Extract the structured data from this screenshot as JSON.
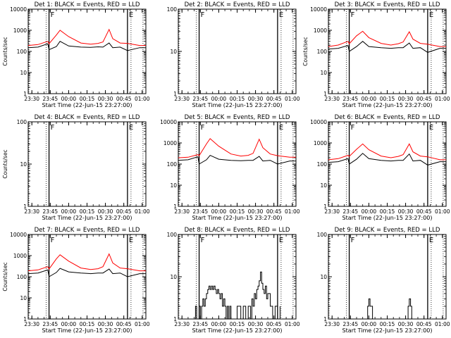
{
  "colors": {
    "events": "#000000",
    "lld": "#ff0000",
    "background": "#ffffff"
  },
  "chart_data": [
    {
      "type": "line",
      "title": "Det 1: BLACK = Events, RED = LLD",
      "xlabel": "Start Time (22-Jun-15 23:27:00)",
      "ylabel": "Counts/sec",
      "yscale": "log",
      "ylim": [
        1,
        10000
      ],
      "yticks": [
        "1",
        "10",
        "100",
        "1000",
        "10000"
      ],
      "xticks": [
        "23:30",
        "23:45",
        "00:00",
        "00:15",
        "00:30",
        "00:45",
        "01:00"
      ],
      "markers": [
        {
          "label": "F",
          "pos": "23:44"
        },
        {
          "label": "E",
          "pos": "00:48"
        }
      ],
      "series": [
        {
          "name": "Events",
          "color": "#000000",
          "x": [
            "23:27",
            "23:35",
            "23:43",
            "23:44",
            "23:50",
            "23:53",
            "00:00",
            "00:10",
            "00:18",
            "00:24",
            "00:28",
            "00:33",
            "00:36",
            "00:42",
            "00:48",
            "00:58",
            "01:03"
          ],
          "y": [
            150,
            160,
            230,
            120,
            170,
            300,
            180,
            160,
            155,
            165,
            160,
            250,
            150,
            160,
            110,
            150,
            150
          ]
        },
        {
          "name": "LLD",
          "color": "#ff0000",
          "x": [
            "23:27",
            "23:35",
            "23:43",
            "23:44",
            "23:50",
            "23:53",
            "00:00",
            "00:10",
            "00:18",
            "00:24",
            "00:28",
            "00:33",
            "00:36",
            "00:42",
            "00:48",
            "00:58",
            "01:03"
          ],
          "y": [
            190,
            210,
            300,
            230,
            600,
            1000,
            500,
            250,
            220,
            240,
            280,
            1100,
            400,
            250,
            240,
            190,
            190
          ]
        }
      ]
    },
    {
      "type": "line",
      "title": "Det 2: BLACK = Events, RED = LLD",
      "xlabel": "Start Time (22-Jun-15 23:27:00)",
      "ylabel": "",
      "yscale": "log",
      "ylim": [
        1,
        100
      ],
      "yticks": [
        "1",
        "10",
        "100"
      ],
      "xticks": [
        "23:30",
        "23:45",
        "00:00",
        "00:15",
        "00:30",
        "00:45",
        "01:00"
      ],
      "markers": [
        {
          "label": "F",
          "pos": "23:44"
        },
        {
          "label": "E",
          "pos": "00:48"
        }
      ],
      "series": []
    },
    {
      "type": "line",
      "title": "Det 3: BLACK = Events, RED = LLD",
      "xlabel": "Start Time (22-Jun-15 23:27:00)",
      "ylabel": "Counts/sec",
      "yscale": "log",
      "ylim": [
        1,
        10000
      ],
      "yticks": [
        "1",
        "10",
        "100",
        "1000",
        "10000"
      ],
      "xticks": [
        "23:30",
        "23:45",
        "00:00",
        "00:15",
        "00:30",
        "00:45",
        "01:00"
      ],
      "markers": [
        {
          "label": "F",
          "pos": "23:44"
        },
        {
          "label": "E",
          "pos": "00:48"
        }
      ],
      "series": [
        {
          "name": "Events",
          "color": "#000000",
          "x": [
            "23:27",
            "23:35",
            "23:43",
            "23:44",
            "23:50",
            "23:55",
            "00:00",
            "00:10",
            "00:18",
            "00:24",
            "00:28",
            "00:33",
            "00:36",
            "00:42",
            "00:48",
            "00:58",
            "01:03"
          ],
          "y": [
            130,
            140,
            190,
            100,
            170,
            300,
            170,
            150,
            140,
            150,
            150,
            250,
            140,
            150,
            90,
            140,
            140
          ]
        },
        {
          "name": "LLD",
          "color": "#ff0000",
          "x": [
            "23:27",
            "23:35",
            "23:43",
            "23:44",
            "23:50",
            "23:55",
            "00:00",
            "00:10",
            "00:18",
            "00:24",
            "00:28",
            "00:33",
            "00:36",
            "00:42",
            "00:48",
            "00:58",
            "01:03"
          ],
          "y": [
            170,
            200,
            300,
            230,
            550,
            900,
            450,
            240,
            200,
            230,
            280,
            850,
            380,
            240,
            220,
            170,
            170
          ]
        }
      ]
    },
    {
      "type": "line",
      "title": "Det 4: BLACK = Events, RED = LLD",
      "xlabel": "Start Time (22-Jun-15 23:27:00)",
      "ylabel": "Counts/sec",
      "yscale": "log",
      "ylim": [
        1,
        100
      ],
      "yticks": [
        "1",
        "10",
        "100"
      ],
      "xticks": [
        "23:30",
        "23:45",
        "00:00",
        "00:15",
        "00:30",
        "00:45",
        "01:00"
      ],
      "markers": [
        {
          "label": "F",
          "pos": "23:44"
        },
        {
          "label": "E",
          "pos": "00:48"
        }
      ],
      "series": []
    },
    {
      "type": "line",
      "title": "Det 5: BLACK = Events, RED = LLD",
      "xlabel": "Start Time (22-Jun-15 23:27:00)",
      "ylabel": "",
      "yscale": "log",
      "ylim": [
        1,
        10000
      ],
      "yticks": [
        "1",
        "10",
        "100",
        "1000",
        "10000"
      ],
      "xticks": [
        "23:30",
        "23:45",
        "00:00",
        "00:15",
        "00:30",
        "00:45",
        "01:00"
      ],
      "markers": [
        {
          "label": "F",
          "pos": "23:44"
        },
        {
          "label": "E",
          "pos": "00:48"
        }
      ],
      "series": [
        {
          "name": "Events",
          "color": "#000000",
          "x": [
            "23:27",
            "23:35",
            "23:43",
            "23:44",
            "23:50",
            "23:53",
            "00:00",
            "00:10",
            "00:18",
            "00:24",
            "00:28",
            "00:33",
            "00:36",
            "00:42",
            "00:48",
            "00:58",
            "01:03"
          ],
          "y": [
            150,
            160,
            220,
            100,
            160,
            260,
            170,
            150,
            145,
            150,
            150,
            230,
            140,
            150,
            100,
            140,
            140
          ]
        },
        {
          "name": "LLD",
          "color": "#ff0000",
          "x": [
            "23:27",
            "23:35",
            "23:43",
            "23:44",
            "23:50",
            "23:53",
            "00:00",
            "00:10",
            "00:18",
            "00:24",
            "00:28",
            "00:33",
            "00:36",
            "00:42",
            "00:48",
            "00:58",
            "01:03"
          ],
          "y": [
            200,
            210,
            280,
            250,
            900,
            1600,
            700,
            300,
            240,
            260,
            320,
            1500,
            600,
            300,
            250,
            210,
            210
          ]
        }
      ]
    },
    {
      "type": "line",
      "title": "Det 6: BLACK = Events, RED = LLD",
      "xlabel": "Start Time (22-Jun-15 23:27:00)",
      "ylabel": "",
      "yscale": "log",
      "ylim": [
        1,
        10000
      ],
      "yticks": [
        "1",
        "10",
        "100",
        "1000",
        "10000"
      ],
      "xticks": [
        "23:30",
        "23:45",
        "00:00",
        "00:15",
        "00:30",
        "00:45",
        "01:00"
      ],
      "markers": [
        {
          "label": "F",
          "pos": "23:44"
        },
        {
          "label": "E",
          "pos": "00:48"
        }
      ],
      "series": [
        {
          "name": "Events",
          "color": "#000000",
          "x": [
            "23:27",
            "23:35",
            "23:43",
            "23:44",
            "23:50",
            "23:55",
            "00:00",
            "00:10",
            "00:18",
            "00:24",
            "00:28",
            "00:33",
            "00:36",
            "00:42",
            "00:48",
            "00:58",
            "01:03"
          ],
          "y": [
            120,
            130,
            180,
            100,
            170,
            320,
            180,
            150,
            140,
            150,
            150,
            300,
            140,
            150,
            90,
            130,
            130
          ]
        },
        {
          "name": "LLD",
          "color": "#ff0000",
          "x": [
            "23:27",
            "23:35",
            "23:43",
            "23:44",
            "23:50",
            "23:55",
            "00:00",
            "00:10",
            "00:18",
            "00:24",
            "00:28",
            "00:33",
            "00:36",
            "00:42",
            "00:48",
            "00:58",
            "01:03"
          ],
          "y": [
            160,
            180,
            260,
            230,
            500,
            900,
            480,
            240,
            200,
            230,
            280,
            900,
            380,
            240,
            220,
            160,
            160
          ]
        }
      ]
    },
    {
      "type": "line",
      "title": "Det 7: BLACK = Events, RED = LLD",
      "xlabel": "Start Time (22-Jun-15 23:27:00)",
      "ylabel": "Counts/sec",
      "yscale": "log",
      "ylim": [
        1,
        10000
      ],
      "yticks": [
        "1",
        "10",
        "100",
        "1000",
        "10000"
      ],
      "xticks": [
        "23:30",
        "23:45",
        "00:00",
        "00:15",
        "00:30",
        "00:45",
        "01:00"
      ],
      "markers": [
        {
          "label": "F",
          "pos": "23:44"
        },
        {
          "label": "E",
          "pos": "00:48"
        }
      ],
      "series": [
        {
          "name": "Events",
          "color": "#000000",
          "x": [
            "23:27",
            "23:35",
            "23:43",
            "23:44",
            "23:50",
            "23:53",
            "00:00",
            "00:10",
            "00:18",
            "00:24",
            "00:28",
            "00:33",
            "00:36",
            "00:42",
            "00:48",
            "00:58",
            "01:03"
          ],
          "y": [
            140,
            150,
            210,
            100,
            160,
            250,
            170,
            150,
            140,
            150,
            150,
            230,
            140,
            150,
            100,
            140,
            140
          ]
        },
        {
          "name": "LLD",
          "color": "#ff0000",
          "x": [
            "23:27",
            "23:35",
            "23:43",
            "23:44",
            "23:50",
            "23:53",
            "00:00",
            "00:10",
            "00:18",
            "00:24",
            "00:28",
            "00:33",
            "00:36",
            "00:42",
            "00:48",
            "00:58",
            "01:03"
          ],
          "y": [
            190,
            210,
            300,
            230,
            700,
            1100,
            550,
            260,
            220,
            240,
            300,
            1200,
            450,
            260,
            240,
            190,
            190
          ]
        }
      ]
    },
    {
      "type": "line",
      "title": "Det 8: BLACK = Events, RED = LLD",
      "xlabel": "Start Time (22-Jun-15 23:27:00)",
      "ylabel": "",
      "yscale": "log",
      "ylim": [
        1,
        100
      ],
      "yticks": [
        "1",
        "10",
        "100"
      ],
      "xticks": [
        "23:30",
        "23:45",
        "00:00",
        "00:15",
        "00:30",
        "00:45",
        "01:00"
      ],
      "markers": [
        {
          "label": "F",
          "pos": "23:44"
        },
        {
          "label": "E",
          "pos": "00:48"
        }
      ],
      "series": [
        {
          "name": "Events",
          "color": "#000000",
          "x": [
            "23:40",
            "23:41",
            "23:42",
            "23:43",
            "23:44",
            "23:45",
            "23:46",
            "23:47",
            "23:48",
            "23:49",
            "23:50",
            "23:51",
            "23:52",
            "23:53",
            "23:54",
            "23:55",
            "23:56",
            "23:57",
            "23:58",
            "23:59",
            "00:00",
            "00:01",
            "00:02",
            "00:03",
            "00:04",
            "00:05",
            "00:06",
            "00:07",
            "00:08",
            "00:09",
            "00:10",
            "00:15",
            "00:18",
            "00:20",
            "00:22",
            "00:24",
            "00:26",
            "00:27",
            "00:28",
            "00:29",
            "00:30",
            "00:31",
            "00:32",
            "00:33",
            "00:34",
            "00:35",
            "00:36",
            "00:37",
            "00:38",
            "00:39",
            "00:40",
            "00:42",
            "00:44",
            "00:46",
            "00:48",
            "00:50"
          ],
          "y": [
            1,
            2,
            1,
            1,
            2,
            1,
            2,
            3,
            2,
            3,
            4,
            5,
            6,
            5,
            6,
            5,
            6,
            5,
            4,
            5,
            4,
            3,
            4,
            2,
            3,
            2,
            1,
            2,
            1,
            2,
            1,
            2,
            1,
            2,
            1,
            2,
            1,
            3,
            2,
            4,
            3,
            5,
            6,
            8,
            13,
            7,
            5,
            4,
            6,
            3,
            4,
            2,
            1,
            2,
            1,
            2
          ]
        }
      ]
    },
    {
      "type": "line",
      "title": "Det 9: BLACK = Events, RED = LLD",
      "xlabel": "Start Time (22-Jun-15 23:27:00)",
      "ylabel": "",
      "yscale": "log",
      "ylim": [
        1,
        100
      ],
      "yticks": [
        "1",
        "10",
        "100"
      ],
      "xticks": [
        "23:30",
        "23:45",
        "00:00",
        "00:15",
        "00:30",
        "00:45",
        "01:00"
      ],
      "markers": [
        {
          "label": "F",
          "pos": "23:44"
        },
        {
          "label": "E",
          "pos": "00:48"
        }
      ],
      "series": [
        {
          "name": "Events",
          "color": "#000000",
          "x": [
            "23:58",
            "23:59",
            "00:00",
            "00:01",
            "00:02",
            "00:03",
            "00:04",
            "00:31",
            "00:32",
            "00:33",
            "00:34",
            "00:35"
          ],
          "y": [
            1,
            2,
            3,
            2,
            2,
            1,
            1,
            1,
            2,
            3,
            2,
            1
          ]
        }
      ]
    }
  ]
}
